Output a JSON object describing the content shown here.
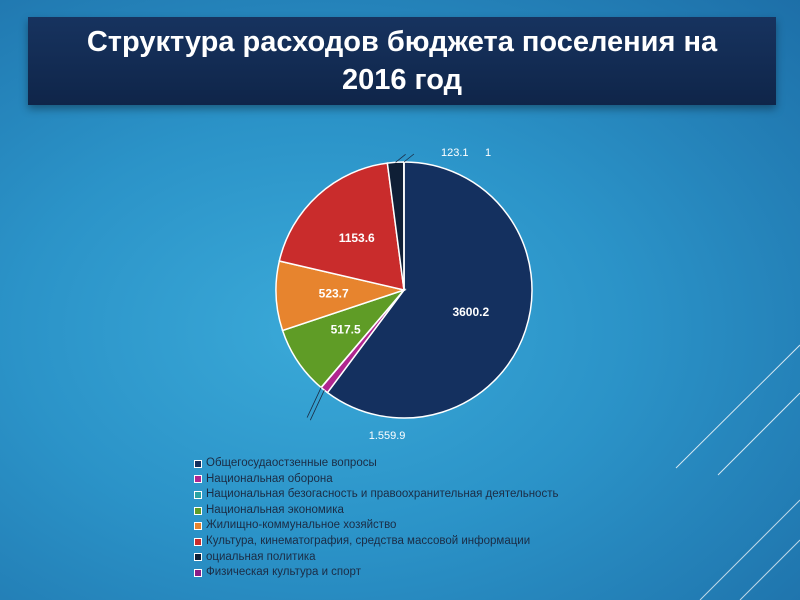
{
  "slide": {
    "title": "Структура расходов бюджета поселения на 2016 год"
  },
  "chart_data": {
    "type": "pie",
    "categories": [
      "Общегосудаостзенные вопросы",
      "Национальная оборона",
      "Национальная безогасность и правоохранительная деятельность",
      "Национальная экономика",
      "Жилищно-коммунальное хозяйство",
      "Культура, кинематография, средства массовой информации",
      "оциальная политика",
      "Физическая культура и спорт"
    ],
    "values": [
      3600.2,
      59.9,
      1.5,
      517.5,
      523.7,
      1153.6,
      123.1,
      1
    ],
    "data_labels": [
      "3600.2",
      "59.9",
      "1.5",
      "517.5",
      "523.7",
      "1153.6",
      "123.1",
      "1"
    ],
    "colors": [
      "#14305f",
      "#b0268f",
      "#2aa3a3",
      "#5f9c26",
      "#e7842e",
      "#c92c2c",
      "#0f1f36",
      "#8a1d86"
    ],
    "legend_position": "bottom"
  }
}
